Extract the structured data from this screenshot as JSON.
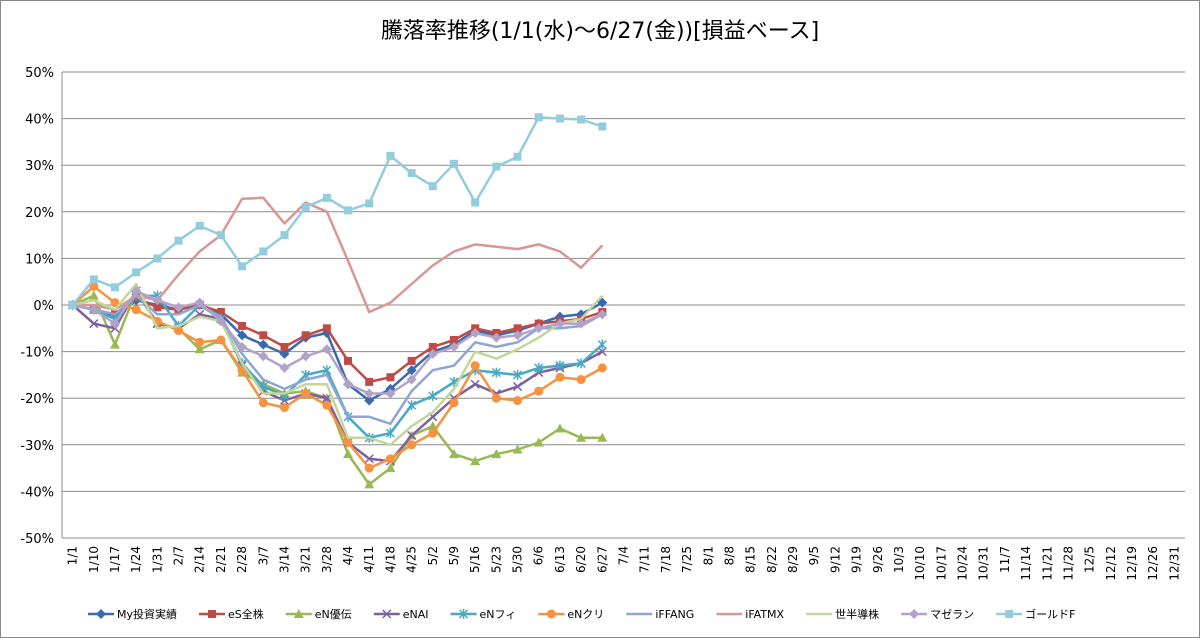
{
  "chart_data": {
    "type": "line",
    "title": "騰落率推移(1/1(水)～6/27(金))[損益ベース]",
    "categories": [
      "1/1",
      "1/10",
      "1/17",
      "1/24",
      "1/31",
      "2/7",
      "2/14",
      "2/21",
      "2/28",
      "3/7",
      "3/14",
      "3/21",
      "3/28",
      "4/4",
      "4/11",
      "4/18",
      "4/25",
      "5/2",
      "5/9",
      "5/16",
      "5/23",
      "5/30",
      "6/6",
      "6/13",
      "6/20",
      "6/27",
      "7/4",
      "7/11",
      "7/18",
      "7/25",
      "8/1",
      "8/8",
      "8/15",
      "8/22",
      "8/29",
      "9/5",
      "9/12",
      "9/19",
      "9/26",
      "10/3",
      "10/10",
      "10/17",
      "10/24",
      "10/31",
      "11/7",
      "11/14",
      "11/21",
      "11/28",
      "12/5",
      "12/12",
      "12/19",
      "12/26",
      "12/31"
    ],
    "series": [
      {
        "name": "My投資実績",
        "color": "#3a6aad",
        "marker": "diamond",
        "values": [
          0,
          -1,
          -2.5,
          1,
          0,
          -1,
          0,
          -2,
          -6.5,
          -8.5,
          -10.5,
          -7,
          -6,
          -17,
          -20.5,
          -18,
          -14,
          -10,
          -8.5,
          -5.5,
          -6.5,
          -5.5,
          -4,
          -2.5,
          -2,
          0.5,
          null,
          null,
          null,
          null,
          null,
          null,
          null,
          null,
          null,
          null,
          null,
          null,
          null,
          null,
          null,
          null,
          null,
          null,
          null,
          null,
          null,
          null,
          null,
          null,
          null,
          null,
          null
        ]
      },
      {
        "name": "eS全株",
        "color": "#be4b48",
        "marker": "square",
        "values": [
          0,
          -1,
          -2,
          1.5,
          -0.5,
          -1,
          0,
          -1.5,
          -4.5,
          -6.5,
          -9,
          -6.5,
          -5,
          -12,
          -16.5,
          -15.5,
          -12,
          -9,
          -7.5,
          -5,
          -6,
          -5,
          -4,
          -3.5,
          -3,
          -1.5,
          null,
          null,
          null,
          null,
          null,
          null,
          null,
          null,
          null,
          null,
          null,
          null,
          null,
          null,
          null,
          null,
          null,
          null,
          null,
          null,
          null,
          null,
          null,
          null,
          null,
          null,
          null
        ]
      },
      {
        "name": "eN優伝",
        "color": "#98b954",
        "marker": "triangle",
        "values": [
          0,
          2,
          -8.5,
          3,
          -4,
          -5,
          -9.5,
          -7.5,
          -14.5,
          -17,
          -19,
          -18.5,
          -20,
          -32,
          -38.5,
          -35,
          -28,
          -26,
          -32,
          -33.5,
          -32,
          -31,
          -29.5,
          -26.5,
          -28.5,
          -28.5,
          null,
          null,
          null,
          null,
          null,
          null,
          null,
          null,
          null,
          null,
          null,
          null,
          null,
          null,
          null,
          null,
          null,
          null,
          null,
          null,
          null,
          null,
          null,
          null,
          null,
          null,
          null
        ]
      },
      {
        "name": "eNAI",
        "color": "#7d60a0",
        "marker": "x",
        "values": [
          0,
          -4,
          -5,
          3,
          -4,
          -5,
          -2,
          -3,
          -13,
          -18.5,
          -20.5,
          -19,
          -20,
          -29.5,
          -33,
          -33.5,
          -28,
          -24,
          -20,
          -17,
          -19,
          -17.5,
          -14.5,
          -13.5,
          -12.5,
          -10,
          null,
          null,
          null,
          null,
          null,
          null,
          null,
          null,
          null,
          null,
          null,
          null,
          null,
          null,
          null,
          null,
          null,
          null,
          null,
          null,
          null,
          null,
          null,
          null,
          null,
          null,
          null
        ]
      },
      {
        "name": "eNフィ",
        "color": "#46aac5",
        "marker": "star",
        "values": [
          0,
          -1,
          -3,
          2,
          2,
          -4.5,
          0,
          -3,
          -12.5,
          -17.5,
          -19.5,
          -15,
          -14,
          -24,
          -28.5,
          -27.5,
          -21.5,
          -19.5,
          -16.5,
          -14,
          -14.5,
          -15,
          -13.5,
          -13,
          -12.5,
          -8.5,
          null,
          null,
          null,
          null,
          null,
          null,
          null,
          null,
          null,
          null,
          null,
          null,
          null,
          null,
          null,
          null,
          null,
          null,
          null,
          null,
          null,
          null,
          null,
          null,
          null,
          null,
          null
        ]
      },
      {
        "name": "eNクリ",
        "color": "#f69240",
        "marker": "circle",
        "values": [
          0,
          4,
          0.5,
          -1,
          -3.5,
          -5.5,
          -8,
          -7.5,
          -14,
          -21,
          -22,
          -19,
          -21.5,
          -29.5,
          -35,
          -33,
          -30,
          -27.5,
          -21,
          -13,
          -20,
          -20.5,
          -18.5,
          -15.5,
          -16,
          -13.5,
          null,
          null,
          null,
          null,
          null,
          null,
          null,
          null,
          null,
          null,
          null,
          null,
          null,
          null,
          null,
          null,
          null,
          null,
          null,
          null,
          null,
          null,
          null,
          null,
          null,
          null,
          null
        ]
      },
      {
        "name": "iFFANG",
        "color": "#8ea5d6",
        "marker": "dash",
        "values": [
          0,
          -1,
          -2,
          2,
          -2,
          -2,
          0,
          -2.5,
          -10.5,
          -16,
          -18,
          -16,
          -15,
          -24,
          -24,
          -25.5,
          -18.5,
          -14,
          -13,
          -8,
          -9,
          -8,
          -5,
          -5,
          -4.5,
          -2,
          null,
          null,
          null,
          null,
          null,
          null,
          null,
          null,
          null,
          null,
          null,
          null,
          null,
          null,
          null,
          null,
          null,
          null,
          null,
          null,
          null,
          null,
          null,
          null,
          null,
          null,
          null
        ]
      },
      {
        "name": "iFATMX",
        "color": "#d99694",
        "marker": "dash",
        "values": [
          0,
          0,
          -1,
          2,
          1,
          6.5,
          11.5,
          15,
          22.8,
          23,
          17.5,
          22,
          20,
          9.5,
          -1.5,
          0.5,
          4.5,
          8.5,
          11.5,
          13,
          12.5,
          12,
          13,
          11.5,
          8,
          12.8,
          null,
          null,
          null,
          null,
          null,
          null,
          null,
          null,
          null,
          null,
          null,
          null,
          null,
          null,
          null,
          null,
          null,
          null,
          null,
          null,
          null,
          null,
          null,
          null,
          null,
          null,
          null
        ]
      },
      {
        "name": "世半導株",
        "color": "#c3d69b",
        "marker": "dash",
        "values": [
          0,
          1,
          -1,
          4.5,
          -5,
          -4.5,
          -2.5,
          -3.5,
          -12.5,
          -19,
          -19,
          -17,
          -17,
          -28.5,
          -28.5,
          -30,
          -26,
          -23,
          -18,
          -10,
          -11.5,
          -9.5,
          -7,
          -4,
          -3,
          2,
          null,
          null,
          null,
          null,
          null,
          null,
          null,
          null,
          null,
          null,
          null,
          null,
          null,
          null,
          null,
          null,
          null,
          null,
          null,
          null,
          null,
          null,
          null,
          null,
          null,
          null,
          null
        ]
      },
      {
        "name": "マゼラン",
        "color": "#b3a2c7",
        "marker": "diamond",
        "values": [
          0,
          -1,
          -4,
          3,
          1,
          -0.5,
          0.5,
          -3.5,
          -9,
          -11,
          -13.5,
          -11,
          -9.5,
          -17,
          -19,
          -19,
          -16,
          -10.5,
          -9,
          -6,
          -7,
          -6.5,
          -5,
          -4,
          -4,
          -2,
          null,
          null,
          null,
          null,
          null,
          null,
          null,
          null,
          null,
          null,
          null,
          null,
          null,
          null,
          null,
          null,
          null,
          null,
          null,
          null,
          null,
          null,
          null,
          null,
          null,
          null,
          null
        ]
      },
      {
        "name": "ゴールドF",
        "color": "#93cddd",
        "marker": "square",
        "values": [
          0,
          5.5,
          3.8,
          7,
          10,
          13.8,
          17,
          15,
          8.3,
          11.5,
          15,
          21,
          23,
          20.3,
          21.8,
          32,
          28.3,
          25.5,
          30.3,
          22,
          29.7,
          31.8,
          40.3,
          40,
          39.8,
          38.3,
          null,
          null,
          null,
          null,
          null,
          null,
          null,
          null,
          null,
          null,
          null,
          null,
          null,
          null,
          null,
          null,
          null,
          null,
          null,
          null,
          null,
          null,
          null,
          null,
          null,
          null,
          null
        ]
      }
    ],
    "ylim": [
      -50,
      50
    ],
    "yticks": [
      {
        "value": -50,
        "label": "-50%"
      },
      {
        "value": -40,
        "label": "-40%"
      },
      {
        "value": -30,
        "label": "-30%"
      },
      {
        "value": -20,
        "label": "-20%"
      },
      {
        "value": -10,
        "label": "-10%"
      },
      {
        "value": 0,
        "label": "0%"
      },
      {
        "value": 10,
        "label": "10%"
      },
      {
        "value": 20,
        "label": "20%"
      },
      {
        "value": 30,
        "label": "30%"
      },
      {
        "value": 40,
        "label": "40%"
      },
      {
        "value": 50,
        "label": "50%"
      }
    ],
    "grid": true,
    "legend": "bottom"
  }
}
